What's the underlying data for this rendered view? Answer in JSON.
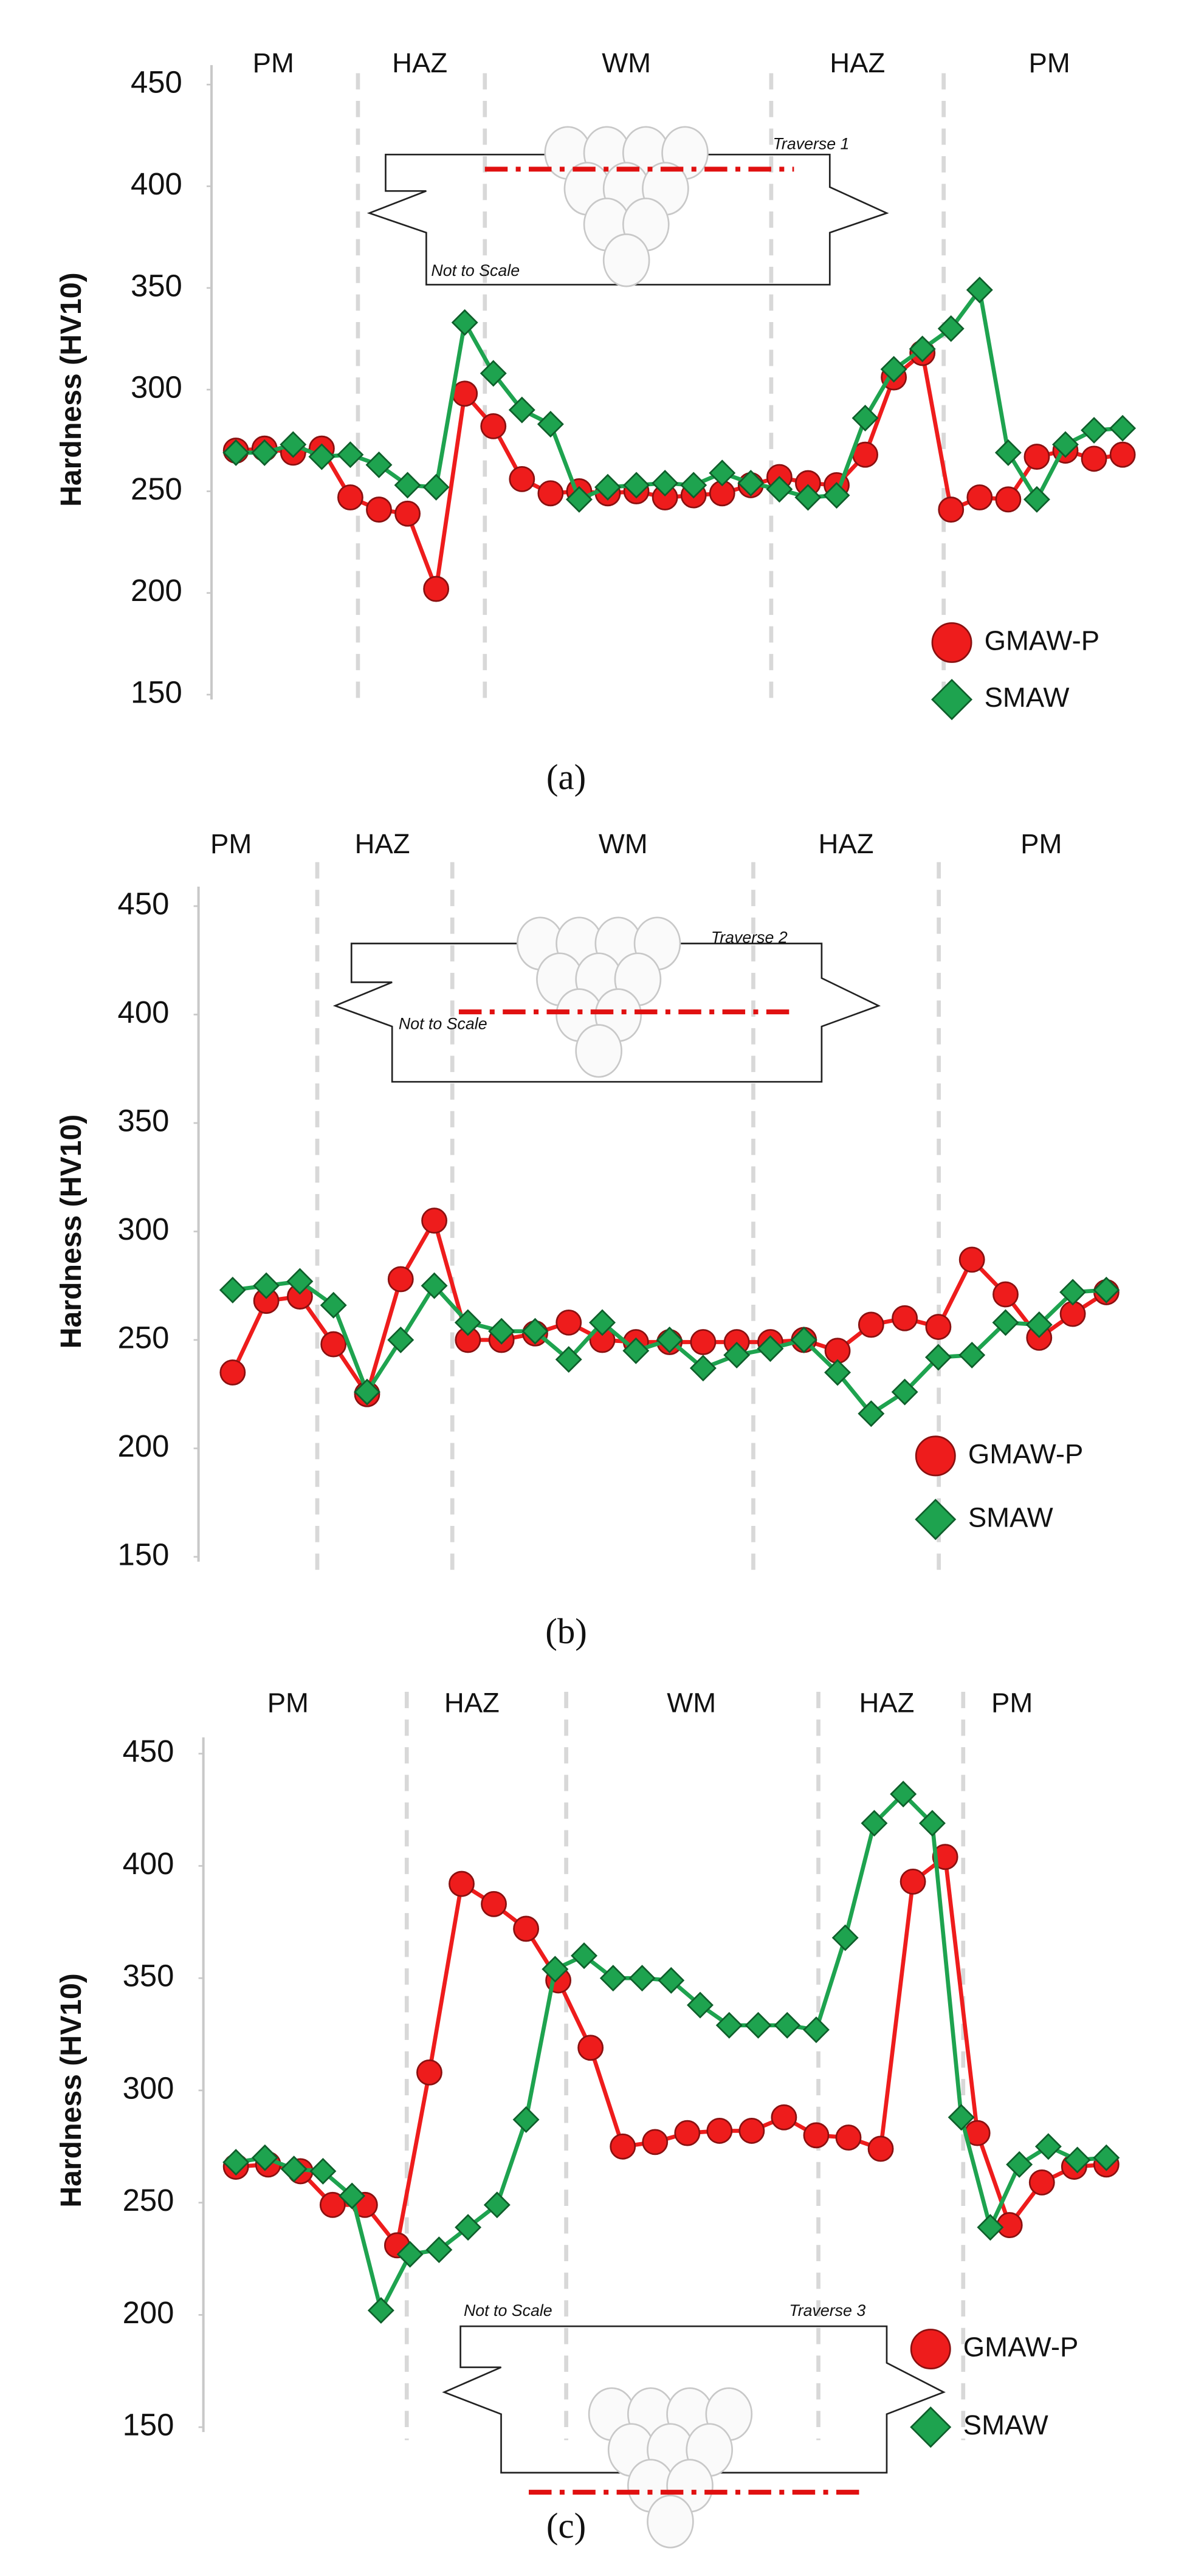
{
  "chart_data": [
    {
      "type": "line",
      "ylabel": "Hardness (HV10)",
      "ylim": [
        150,
        450
      ],
      "yticks": [
        150,
        200,
        250,
        300,
        350,
        400,
        450
      ],
      "zones": [
        "PM",
        "HAZ",
        "WM",
        "HAZ",
        "PM"
      ],
      "annotations": [
        "Traverse 1",
        "Not to Scale"
      ],
      "caption": "(a)",
      "series": [
        {
          "name": "GMAW-P",
          "color": "#ee1c1c",
          "marker": "circle",
          "values": [
            270,
            271,
            269,
            271,
            247,
            241,
            239,
            202,
            298,
            282,
            256,
            249,
            250,
            249,
            250,
            247,
            248,
            249,
            253,
            257,
            254,
            253,
            268,
            306,
            318,
            241,
            247,
            246,
            267,
            270,
            266,
            268
          ]
        },
        {
          "name": "SMAW",
          "color": "#1ea34f",
          "marker": "diamond",
          "values": [
            269,
            269,
            273,
            267,
            268,
            263,
            253,
            252,
            333,
            308,
            290,
            283,
            246,
            252,
            253,
            254,
            253,
            259,
            254,
            251,
            247,
            248,
            286,
            310,
            320,
            330,
            349,
            269,
            246,
            273,
            280,
            281
          ]
        }
      ]
    },
    {
      "type": "line",
      "ylabel": "Hardness (HV10)",
      "ylim": [
        150,
        450
      ],
      "yticks": [
        150,
        200,
        250,
        300,
        350,
        400,
        450
      ],
      "zones": [
        "PM",
        "HAZ",
        "WM",
        "HAZ",
        "PM"
      ],
      "annotations": [
        "Traverse 2",
        "Not to Scale"
      ],
      "caption": "(b)",
      "series": [
        {
          "name": "GMAW-P",
          "color": "#ee1c1c",
          "marker": "circle",
          "values": [
            235,
            268,
            270,
            248,
            225,
            278,
            305,
            250,
            250,
            253,
            258,
            250,
            249,
            249,
            249,
            249,
            249,
            250,
            245,
            257,
            260,
            256,
            287,
            271,
            251,
            262,
            272
          ]
        },
        {
          "name": "SMAW",
          "color": "#1ea34f",
          "marker": "diamond",
          "values": [
            273,
            275,
            277,
            266,
            226,
            250,
            275,
            258,
            254,
            254,
            241,
            258,
            245,
            250,
            237,
            243,
            246,
            250,
            235,
            216,
            226,
            242,
            243,
            258,
            257,
            272,
            273
          ]
        }
      ]
    },
    {
      "type": "line",
      "ylabel": "Hardness (HV10)",
      "ylim": [
        150,
        450
      ],
      "yticks": [
        150,
        200,
        250,
        300,
        350,
        400,
        450
      ],
      "zones": [
        "PM",
        "HAZ",
        "WM",
        "HAZ",
        "PM"
      ],
      "annotations": [
        "Not to Scale",
        "Traverse 3"
      ],
      "caption": "(c)",
      "series": [
        {
          "name": "GMAW-P",
          "color": "#ee1c1c",
          "marker": "circle",
          "values": [
            266,
            267,
            264,
            249,
            249,
            231,
            308,
            392,
            383,
            372,
            349,
            319,
            275,
            277,
            281,
            282,
            282,
            288,
            280,
            279,
            274,
            393,
            404,
            281,
            240,
            259,
            266,
            267
          ]
        },
        {
          "name": "SMAW",
          "color": "#1ea34f",
          "marker": "diamond",
          "values": [
            268,
            270,
            265,
            264,
            253,
            202,
            227,
            229,
            239,
            249,
            287,
            354,
            360,
            350,
            350,
            349,
            338,
            329,
            329,
            329,
            327,
            368,
            419,
            432,
            419,
            288,
            239,
            267,
            275,
            269,
            270
          ]
        }
      ]
    }
  ]
}
